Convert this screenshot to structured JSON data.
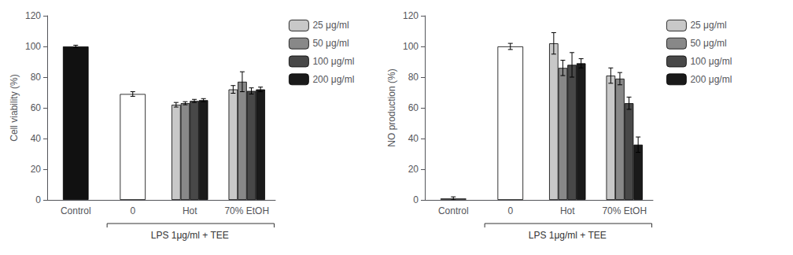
{
  "chart_data": [
    {
      "type": "bar",
      "ylabel": "Cell viability (%)",
      "xlabel": "LPS 1μg/ml + TEE",
      "categories": [
        "Control",
        "0",
        "Hot",
        "70% EtOH"
      ],
      "ylim": [
        0,
        120
      ],
      "yticks": [
        0,
        20,
        40,
        60,
        80,
        100,
        120
      ],
      "grid": false,
      "legend": "right",
      "series": [
        {
          "color": "#111111",
          "values": [
            100,
            null,
            null,
            null
          ],
          "errors": [
            0.8,
            null,
            null,
            null
          ]
        },
        {
          "color": "#ffffff",
          "values": [
            null,
            69,
            null,
            null
          ],
          "errors": [
            null,
            1.5,
            null,
            null
          ]
        },
        {
          "name": "25 μg/ml",
          "color": "#c8c8c8",
          "values": [
            null,
            null,
            62,
            72
          ],
          "errors": [
            null,
            null,
            1.5,
            2.5
          ]
        },
        {
          "name": "50 μg/ml",
          "color": "#888888",
          "values": [
            null,
            null,
            63,
            77
          ],
          "errors": [
            null,
            null,
            1.0,
            6.5
          ]
        },
        {
          "name": "100 μg/ml",
          "color": "#484848",
          "values": [
            null,
            null,
            64.5,
            71
          ],
          "errors": [
            null,
            null,
            1.0,
            2.0
          ]
        },
        {
          "name": "200 μg/ml",
          "color": "#1a1a1a",
          "values": [
            null,
            null,
            65,
            72
          ],
          "errors": [
            null,
            null,
            1.0,
            1.5
          ]
        }
      ]
    },
    {
      "type": "bar",
      "ylabel": "NO production (%)",
      "xlabel": "LPS 1μg/ml + TEE",
      "categories": [
        "Control",
        "0",
        "Hot",
        "70% EtOH"
      ],
      "ylim": [
        0,
        120
      ],
      "yticks": [
        0,
        20,
        40,
        60,
        80,
        100,
        120
      ],
      "grid": false,
      "legend": "right",
      "series": [
        {
          "color": "#ffffff",
          "values": [
            1,
            null,
            null,
            null
          ],
          "errors": [
            1,
            null,
            null,
            null
          ]
        },
        {
          "color": "#ffffff",
          "values": [
            null,
            100,
            null,
            null
          ],
          "errors": [
            null,
            2,
            null,
            null
          ]
        },
        {
          "name": "25 μg/ml",
          "color": "#c8c8c8",
          "values": [
            null,
            null,
            102,
            81
          ],
          "errors": [
            null,
            null,
            7,
            5
          ]
        },
        {
          "name": "50 μg/ml",
          "color": "#888888",
          "values": [
            null,
            null,
            86,
            79
          ],
          "errors": [
            null,
            null,
            5,
            4
          ]
        },
        {
          "name": "100 μg/ml",
          "color": "#484848",
          "values": [
            null,
            null,
            88,
            63
          ],
          "errors": [
            null,
            null,
            8,
            4
          ]
        },
        {
          "name": "200 μg/ml",
          "color": "#1a1a1a",
          "values": [
            null,
            null,
            89,
            36
          ],
          "errors": [
            null,
            null,
            3,
            5
          ]
        }
      ]
    }
  ]
}
